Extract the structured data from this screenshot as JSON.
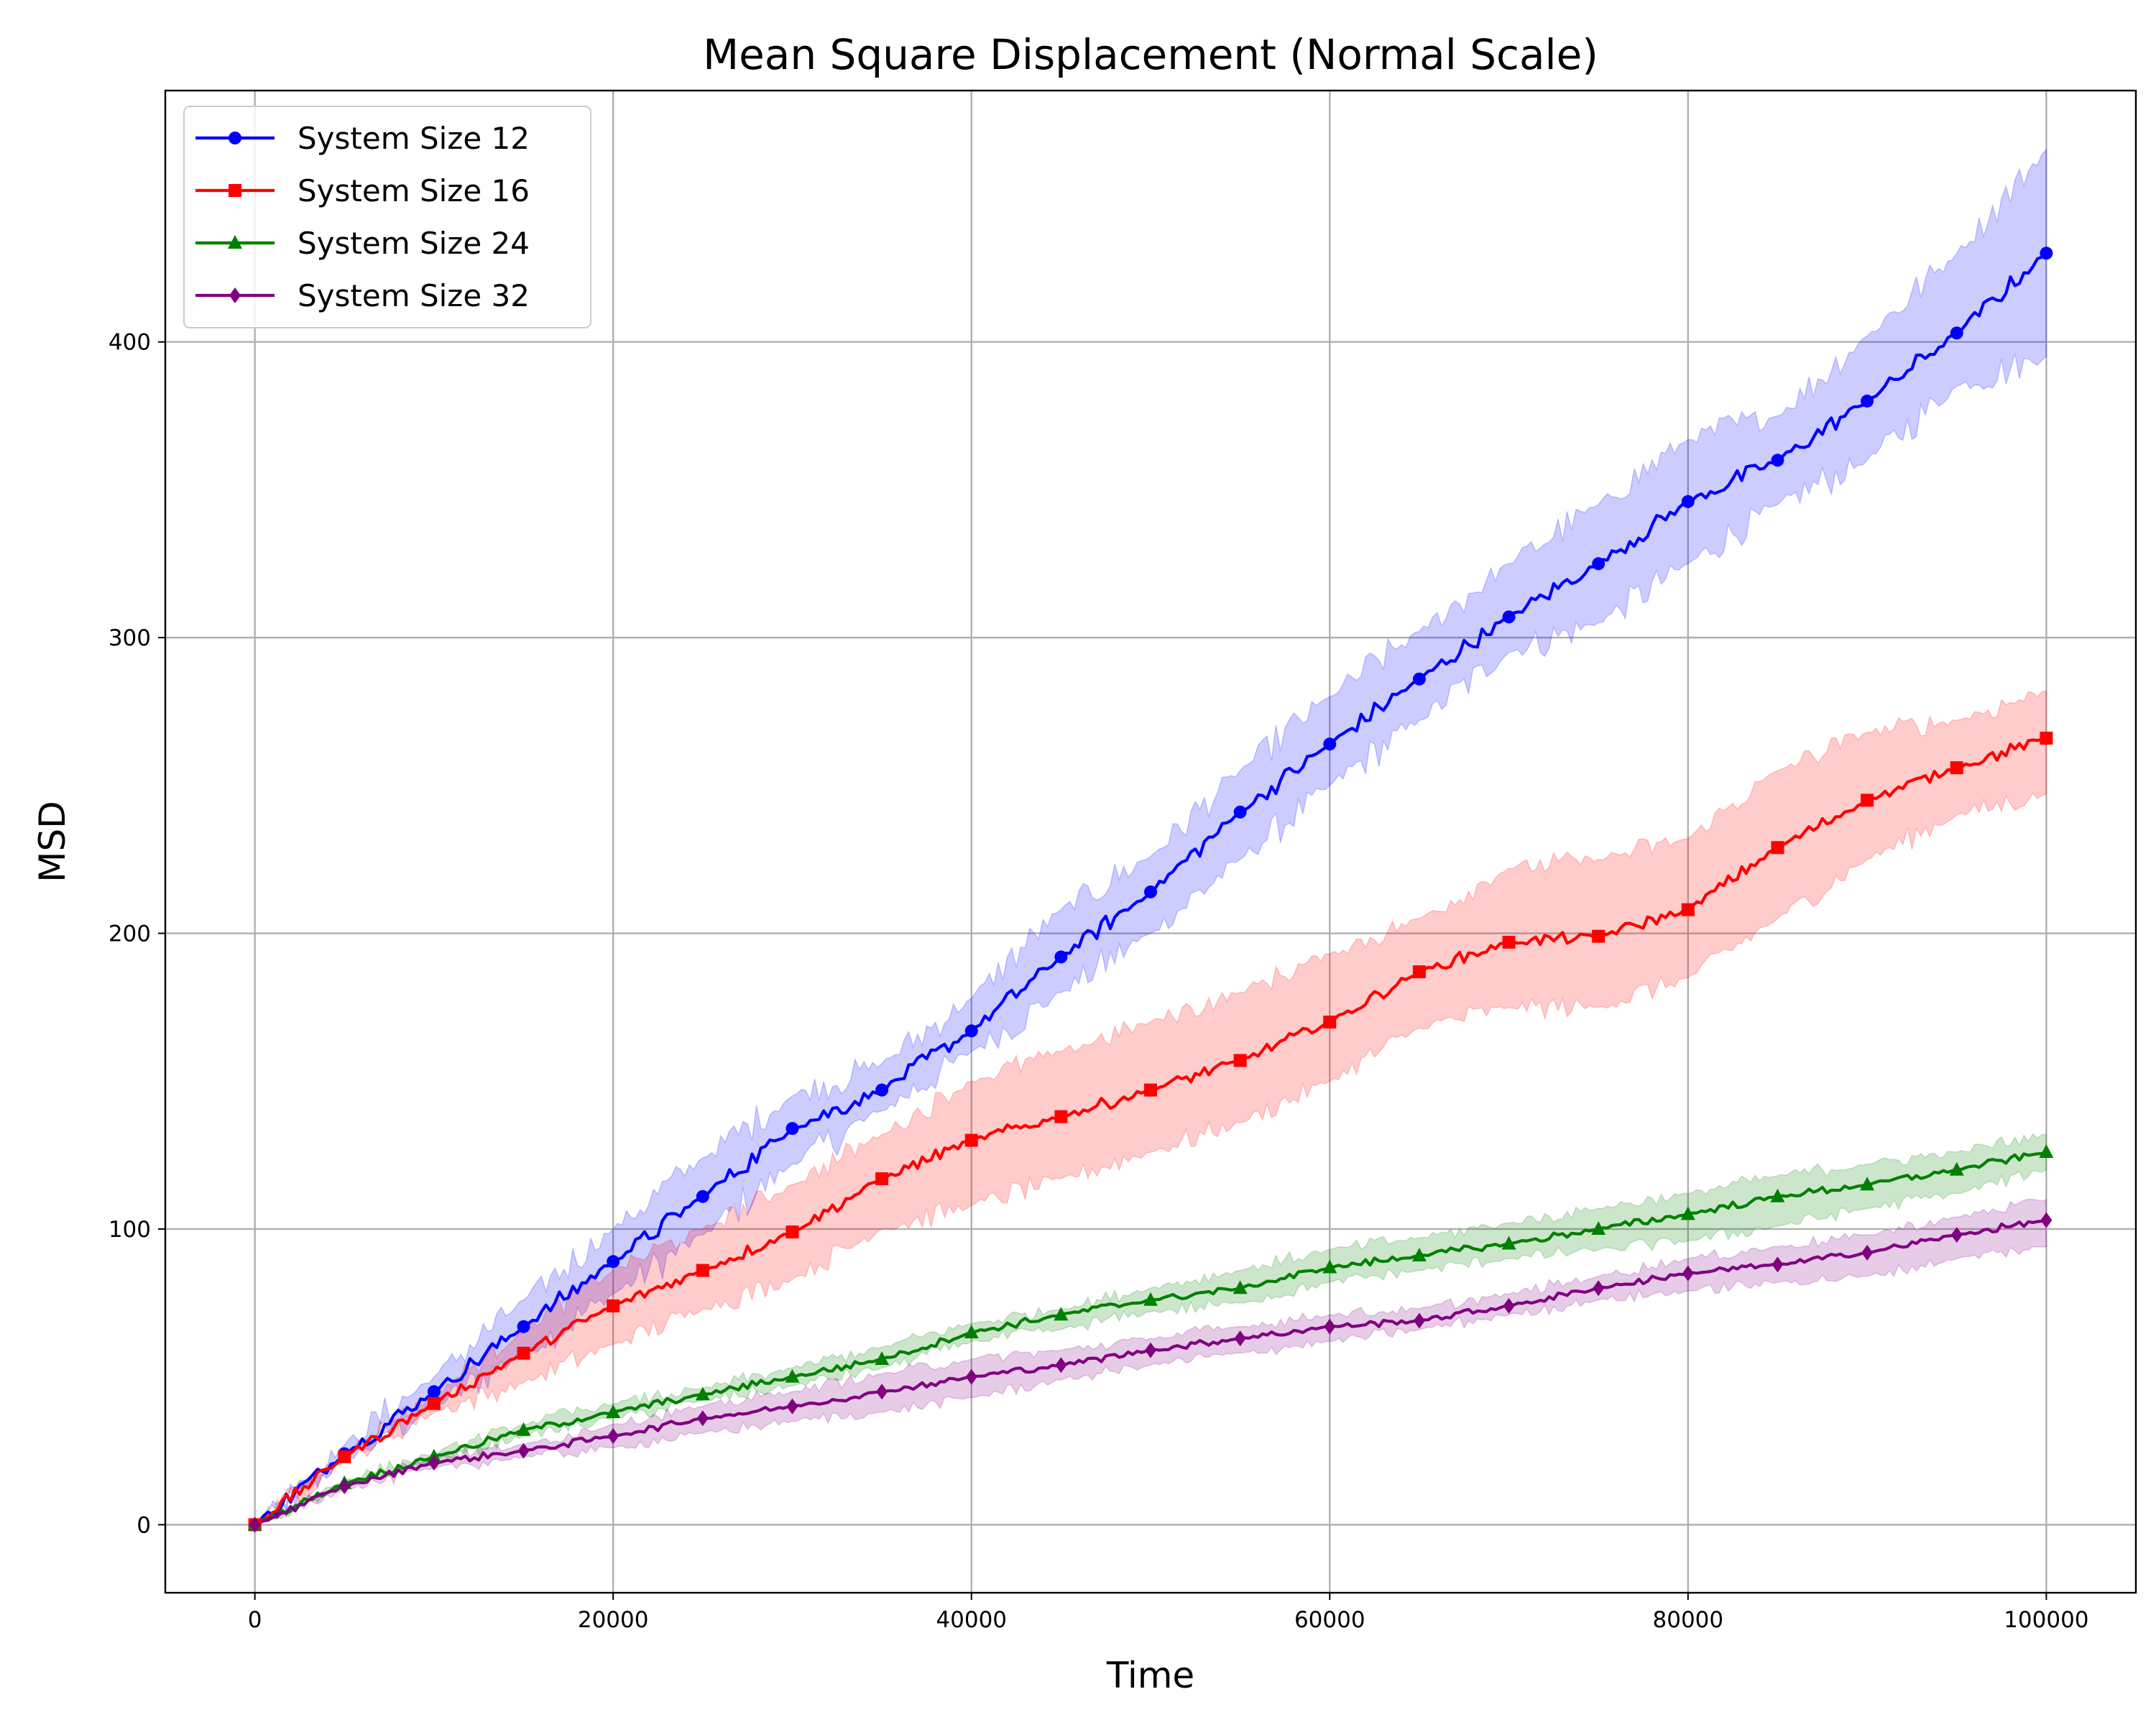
{
  "chart_data": {
    "type": "line",
    "title": "Mean Square Displacement (Normal Scale)",
    "xlabel": "Time",
    "ylabel": "MSD",
    "xlim": [
      -5000,
      105000
    ],
    "ylim": [
      -23,
      485
    ],
    "xticks": [
      0,
      20000,
      40000,
      60000,
      80000,
      100000
    ],
    "yticks": [
      0,
      100,
      200,
      300,
      400
    ],
    "grid": true,
    "legend_position": "top-left",
    "x": [
      0,
      5000,
      10000,
      15000,
      20000,
      25000,
      30000,
      35000,
      40000,
      45000,
      50000,
      55000,
      60000,
      65000,
      70000,
      75000,
      80000,
      85000,
      90000,
      95000,
      100000
    ],
    "series": [
      {
        "name": "System Size 12",
        "color": "#0000ff",
        "fill": "#0000ff",
        "marker": "circle",
        "values": [
          0,
          24,
          45,
          67,
          89,
          111,
          134,
          147,
          167,
          192,
          214,
          241,
          264,
          286,
          307,
          325,
          346,
          360,
          380,
          403,
          430
        ],
        "lower": [
          0,
          22,
          40,
          58,
          78,
          98,
          122,
          140,
          160,
          180,
          200,
          225,
          250,
          272,
          295,
          305,
          325,
          345,
          360,
          385,
          395
        ],
        "upper": [
          0,
          27,
          50,
          76,
          100,
          124,
          145,
          156,
          178,
          208,
          226,
          255,
          280,
          302,
          325,
          345,
          367,
          375,
          402,
          430,
          465
        ]
      },
      {
        "name": "System Size 16",
        "color": "#ff0000",
        "fill": "#ff0000",
        "marker": "square",
        "values": [
          0,
          23,
          41,
          58,
          74,
          86,
          99,
          117,
          130,
          138,
          147,
          157,
          170,
          187,
          197,
          199,
          208,
          229,
          245,
          256,
          266
        ],
        "lower": [
          0,
          22,
          38,
          48,
          61,
          73,
          83,
          100,
          108,
          117,
          126,
          136,
          150,
          168,
          175,
          175,
          185,
          205,
          225,
          240,
          247
        ],
        "upper": [
          0,
          24,
          44,
          66,
          86,
          100,
          115,
          132,
          150,
          160,
          170,
          180,
          193,
          205,
          222,
          225,
          232,
          255,
          268,
          272,
          282
        ]
      },
      {
        "name": "System Size 24",
        "color": "#008000",
        "fill": "#008000",
        "marker": "triangle",
        "values": [
          0,
          14,
          23,
          32,
          38,
          44,
          50,
          56,
          65,
          71,
          76,
          80,
          87,
          91,
          95,
          100,
          105,
          111,
          115,
          120,
          126
        ],
        "lower": [
          0,
          13,
          22,
          30,
          36,
          42,
          47,
          53,
          62,
          66,
          72,
          75,
          82,
          86,
          90,
          93,
          96,
          101,
          107,
          112,
          120
        ],
        "upper": [
          0,
          15,
          24,
          34,
          41,
          46,
          53,
          60,
          68,
          73,
          80,
          86,
          93,
          97,
          102,
          107,
          112,
          118,
          122,
          126,
          132
        ]
      },
      {
        "name": "System Size 32",
        "color": "#800080",
        "fill": "#800080",
        "marker": "diamond",
        "values": [
          0,
          13,
          21,
          25,
          30,
          36,
          40,
          45,
          50,
          54,
          59,
          63,
          67,
          69,
          74,
          80,
          85,
          88,
          92,
          98,
          103
        ],
        "lower": [
          0,
          12,
          19,
          23,
          26,
          31,
          35,
          38,
          43,
          49,
          54,
          58,
          62,
          66,
          71,
          76,
          79,
          82,
          84,
          90,
          94
        ],
        "upper": [
          0,
          14,
          23,
          27,
          34,
          40,
          45,
          51,
          56,
          59,
          63,
          67,
          71,
          73,
          78,
          84,
          90,
          94,
          98,
          104,
          110
        ]
      }
    ]
  }
}
